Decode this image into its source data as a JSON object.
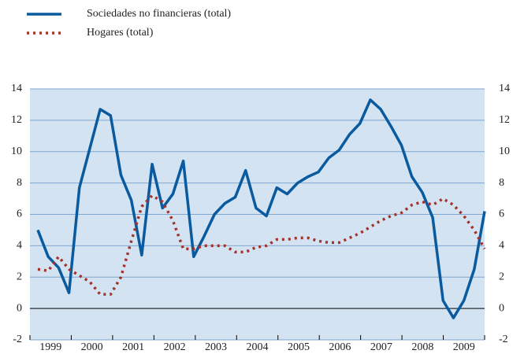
{
  "chart_data": {
    "type": "line",
    "categories": [
      null,
      "1999",
      null,
      null,
      null,
      "2000",
      null,
      null,
      null,
      "2001",
      null,
      null,
      null,
      "2002",
      null,
      null,
      null,
      "2003",
      null,
      null,
      null,
      "2004",
      null,
      null,
      null,
      "2005",
      null,
      null,
      null,
      "2006",
      null,
      null,
      null,
      "2007",
      null,
      null,
      null,
      "2008",
      null,
      null,
      null,
      "2009",
      null,
      null
    ],
    "series": [
      {
        "name": "Sociedades no financieras (total)",
        "color": "#0a5aa0",
        "style": "solid",
        "values": [
          5.0,
          3.3,
          2.6,
          1.0,
          7.7,
          10.2,
          12.7,
          12.3,
          8.5,
          6.9,
          3.4,
          9.2,
          6.4,
          7.3,
          9.4,
          3.3,
          4.6,
          6.0,
          6.7,
          7.1,
          8.8,
          6.4,
          5.9,
          7.7,
          7.3,
          8.0,
          8.4,
          8.7,
          9.6,
          10.1,
          11.1,
          11.8,
          13.3,
          12.7,
          11.6,
          10.4,
          8.4,
          7.4,
          5.8,
          0.5,
          -0.6,
          0.5,
          2.5,
          6.2
        ]
      },
      {
        "name": "Hogares (total)",
        "color": "#a3322b",
        "style": "dotted",
        "values": [
          2.5,
          2.4,
          3.3,
          2.5,
          2.1,
          1.7,
          0.9,
          0.9,
          2.0,
          4.3,
          6.5,
          7.2,
          6.8,
          5.6,
          3.8,
          3.8,
          4.0,
          4.0,
          4.0,
          3.6,
          3.6,
          3.9,
          4.0,
          4.4,
          4.4,
          4.5,
          4.5,
          4.3,
          4.2,
          4.2,
          4.5,
          4.8,
          5.2,
          5.6,
          5.9,
          6.1,
          6.6,
          6.8,
          6.6,
          7.0,
          6.6,
          5.9,
          5.0,
          3.8
        ]
      }
    ],
    "ylim": [
      -2,
      14
    ],
    "yticks": [
      -2,
      0,
      2,
      4,
      6,
      8,
      10,
      12,
      14
    ],
    "grid": true,
    "legend": "top-left"
  }
}
